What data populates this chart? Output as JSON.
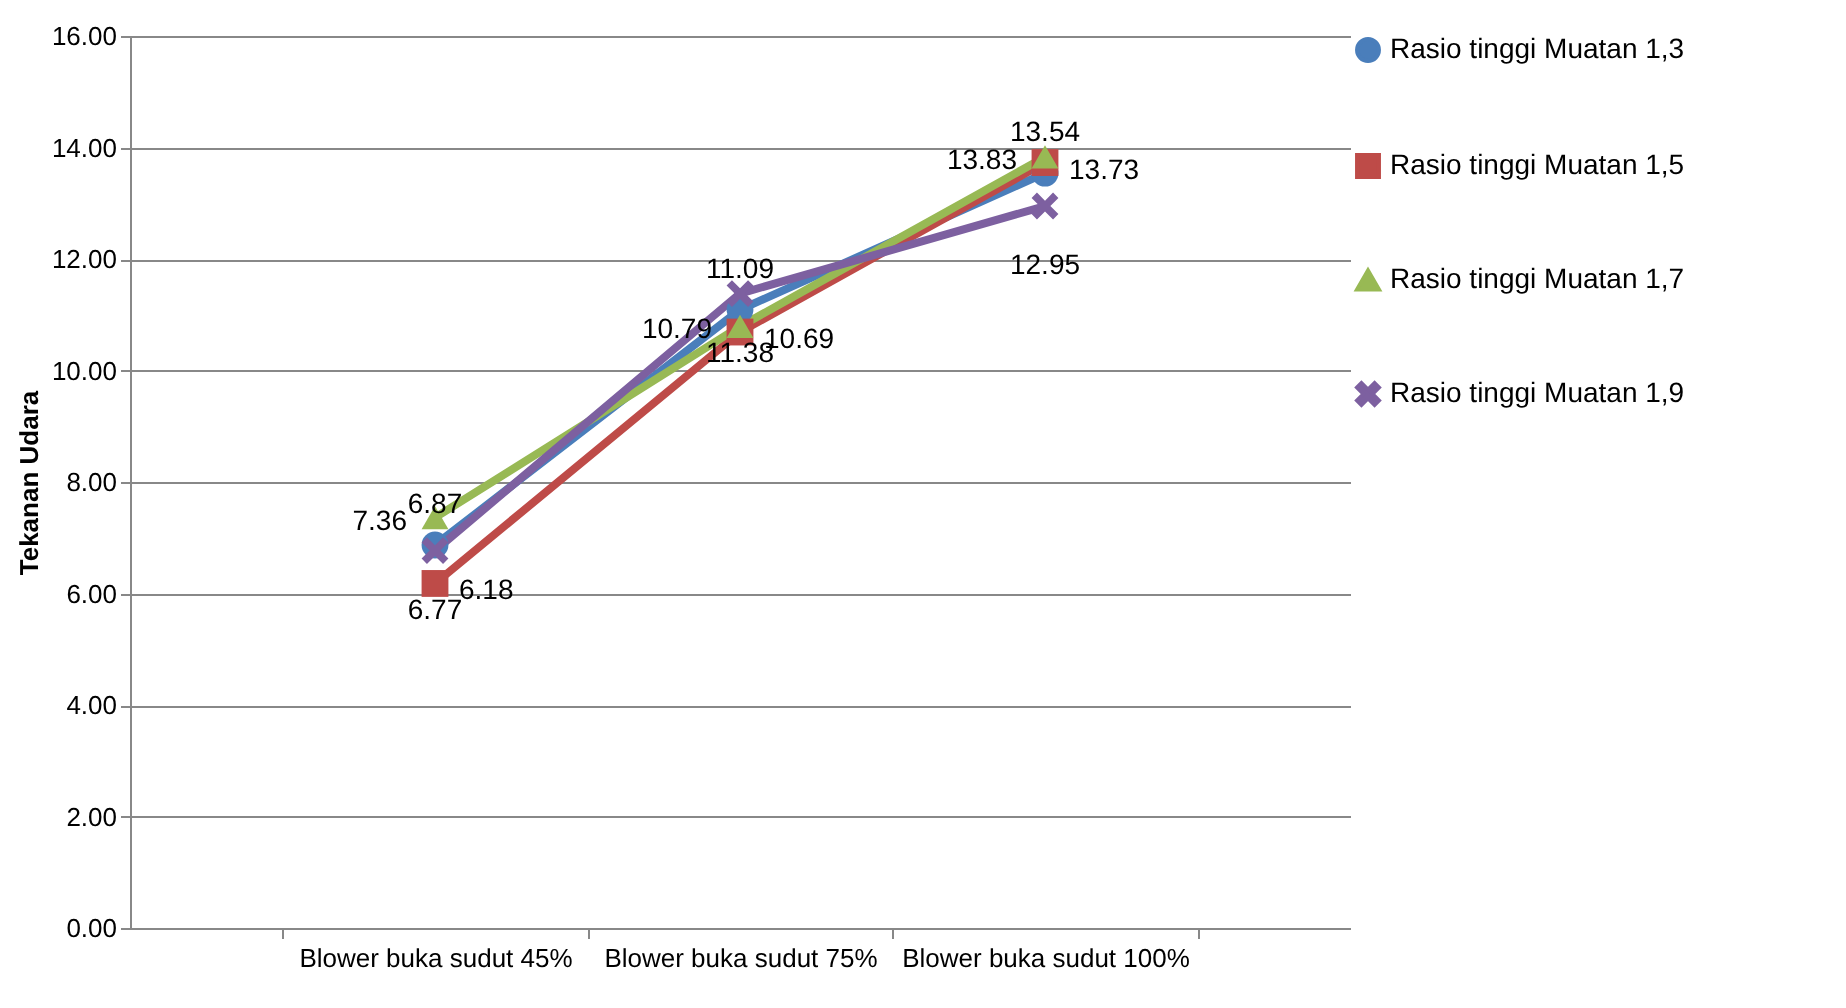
{
  "chart_data": {
    "type": "line",
    "ylabel": "Tekanan Udara",
    "categories": [
      "Blower buka sudut 45%",
      "Blower buka sudut 75%",
      "Blower buka sudut 100%"
    ],
    "series": [
      {
        "name": "Rasio tinggi Muatan 1,3",
        "color": "#4a7ebb",
        "marker": "circle",
        "values": [
          6.87,
          11.09,
          13.54
        ]
      },
      {
        "name": "Rasio tinggi Muatan 1,5",
        "color": "#be4b48",
        "marker": "square",
        "values": [
          6.18,
          10.69,
          13.73
        ]
      },
      {
        "name": "Rasio tinggi Muatan 1,7",
        "color": "#98b954",
        "marker": "triangle",
        "values": [
          7.36,
          10.79,
          13.83
        ]
      },
      {
        "name": "Rasio tinggi Muatan 1,9",
        "color": "#7d60a0",
        "marker": "cross",
        "values": [
          6.77,
          11.38,
          12.95
        ]
      }
    ],
    "ylim": [
      0,
      16
    ],
    "yticks": [
      {
        "value": 0,
        "label": "0.00"
      },
      {
        "value": 2,
        "label": "2.00"
      },
      {
        "value": 4,
        "label": "4.00"
      },
      {
        "value": 6,
        "label": "6.00"
      },
      {
        "value": 8,
        "label": "8.00"
      },
      {
        "value": 10,
        "label": "10.00"
      },
      {
        "value": 12,
        "label": "12.00"
      },
      {
        "value": 14,
        "label": "14.00"
      },
      {
        "value": 16,
        "label": "16.00"
      }
    ],
    "grid": "y",
    "legend": "right",
    "data_labels": true,
    "line_style": "solid"
  }
}
